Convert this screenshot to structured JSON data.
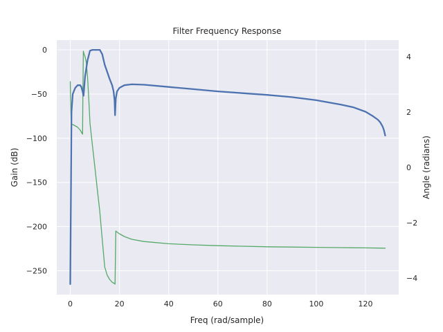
{
  "chart_data": {
    "type": "line",
    "title": "Filter Frequency Response",
    "xlabel": "Freq (rad/sample)",
    "ylabel": "Gain (dB)",
    "y2label": "Angle (radians)",
    "xlim": [
      -5.5,
      133.5
    ],
    "ylim": [
      -277,
      11
    ],
    "y2lim": [
      -4.6,
      4.6
    ],
    "xticks": [
      0,
      20,
      40,
      60,
      80,
      100,
      120
    ],
    "yticks": [
      0,
      -50,
      -100,
      -150,
      -200,
      -250
    ],
    "y2ticks": [
      4,
      2,
      0,
      -2,
      -4
    ],
    "grid": true,
    "background": "#eaeaf2",
    "series": [
      {
        "axis": "left",
        "color": "#4c72b0",
        "x": [
          0,
          0.3,
          0.5,
          1,
          2,
          3,
          4,
          4.5,
          5,
          5.4,
          6,
          7,
          8,
          9,
          10,
          11,
          12,
          13,
          14,
          15,
          16,
          17,
          17.6,
          18,
          18.2,
          18.5,
          19,
          20,
          22,
          25,
          30,
          40,
          50,
          60,
          70,
          80,
          90,
          100,
          110,
          115,
          120,
          123,
          125,
          126,
          127,
          127.5,
          128
        ],
        "y": [
          -265,
          -150,
          -70,
          -50,
          -43,
          -40,
          -40,
          -42,
          -47,
          -52,
          -30,
          -12,
          -1,
          0,
          0,
          0,
          0,
          -5,
          -17,
          -25,
          -33,
          -40,
          -47,
          -57,
          -74,
          -55,
          -47,
          -43,
          -40,
          -39,
          -39.5,
          -42,
          -44.5,
          -47,
          -49,
          -51,
          -53.5,
          -57,
          -62,
          -65,
          -70,
          -75,
          -79,
          -82,
          -87,
          -91,
          -97
        ]
      },
      {
        "axis": "right",
        "color": "#55a868",
        "x": [
          0,
          0.1,
          0.3,
          0.5,
          1,
          2,
          3,
          4,
          5,
          5.1,
          5.3,
          5.6,
          6,
          6.5,
          7,
          7.5,
          8,
          9,
          10,
          11,
          12,
          13,
          14,
          15,
          16,
          17,
          18,
          18.2,
          18.5,
          19,
          20,
          22,
          25,
          30,
          40,
          50,
          60,
          70,
          80,
          90,
          100,
          110,
          120,
          128
        ],
        "y": [
          3.1,
          2.6,
          1.8,
          1.55,
          1.55,
          1.5,
          1.45,
          1.35,
          1.2,
          2.5,
          4.2,
          4.1,
          4.0,
          3.8,
          3.3,
          2.5,
          1.6,
          0.8,
          0.0,
          -0.8,
          -1.6,
          -2.6,
          -3.6,
          -3.9,
          -4.05,
          -4.15,
          -4.2,
          -4.22,
          -2.3,
          -2.34,
          -2.4,
          -2.5,
          -2.6,
          -2.68,
          -2.76,
          -2.8,
          -2.83,
          -2.85,
          -2.87,
          -2.88,
          -2.89,
          -2.9,
          -2.91,
          -2.92
        ]
      }
    ]
  }
}
